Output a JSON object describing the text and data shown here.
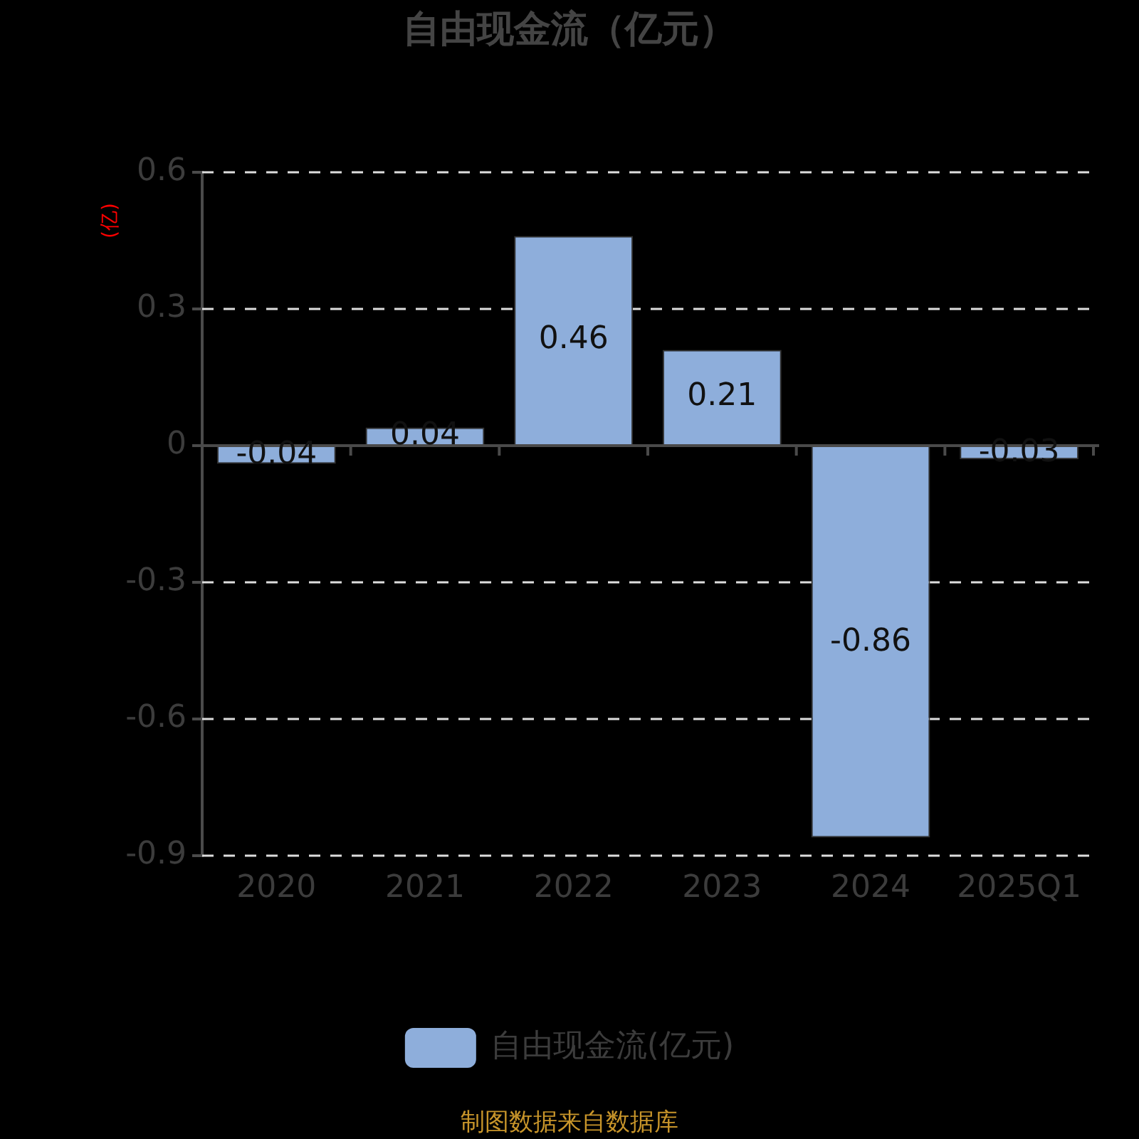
{
  "chart_data": {
    "type": "bar",
    "title": "自由现金流（亿元）",
    "ylabel": "(亿)",
    "categories": [
      "2020",
      "2021",
      "2022",
      "2023",
      "2024",
      "2025Q1"
    ],
    "series": [
      {
        "name": "自由现金流(亿元)",
        "color": "#8eaedb",
        "values": [
          -0.04,
          0.04,
          0.46,
          0.21,
          -0.86,
          -0.03
        ]
      }
    ],
    "ylim": [
      -0.9,
      0.6
    ],
    "yticks": [
      -0.9,
      -0.6,
      -0.3,
      0,
      0.3,
      0.6
    ],
    "grid": "y",
    "legend": "bottom",
    "data_labels": true,
    "annotations": [
      "制图数据来自数据库"
    ]
  }
}
